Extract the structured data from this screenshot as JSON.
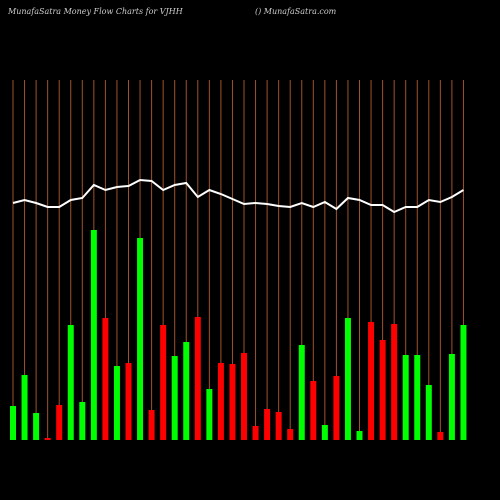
{
  "chart_data": {
    "type": "bar-line",
    "title": "MunafaSatra  Money Flow  Charts for VJHH",
    "subtitle": "() MunafaSatra.com",
    "categories": [
      null,
      null,
      null,
      null,
      null,
      null,
      null,
      null,
      null,
      null,
      null,
      null,
      null,
      null,
      null,
      null,
      null,
      null,
      null,
      null,
      null,
      null,
      null,
      null,
      null,
      null,
      null,
      null,
      null,
      null,
      null,
      null,
      null,
      null,
      null,
      null,
      null,
      null,
      null,
      null
    ],
    "ylim": [
      0,
      360
    ],
    "grid": true,
    "grid_color": "#a0522d",
    "series": [
      {
        "type": "bar",
        "values": [
          34,
          65,
          27,
          2,
          35,
          115,
          38,
          210,
          122,
          74,
          77,
          202,
          30,
          115,
          84,
          98,
          123,
          51,
          77,
          76,
          87,
          14,
          31,
          28,
          11,
          95,
          59,
          15,
          64,
          122,
          9,
          118,
          100,
          116,
          85,
          85,
          55,
          8,
          86,
          115
        ],
        "colors": [
          "#00ff00",
          "#00ff00",
          "#00ff00",
          "#ff0000",
          "#ff0000",
          "#00ff00",
          "#00ff00",
          "#00ff00",
          "#ff0000",
          "#00ff00",
          "#ff0000",
          "#00ff00",
          "#ff0000",
          "#ff0000",
          "#00ff00",
          "#00ff00",
          "#ff0000",
          "#00ff00",
          "#ff0000",
          "#ff0000",
          "#ff0000",
          "#ff0000",
          "#ff0000",
          "#ff0000",
          "#ff0000",
          "#00ff00",
          "#ff0000",
          "#00ff00",
          "#ff0000",
          "#00ff00",
          "#00ff00",
          "#ff0000",
          "#ff0000",
          "#ff0000",
          "#00ff00",
          "#00ff00",
          "#00ff00",
          "#ff0000",
          "#00ff00",
          "#00ff00"
        ]
      },
      {
        "type": "line",
        "color": "#ffffff",
        "values": [
          237,
          240,
          237,
          233,
          233,
          240,
          242,
          255,
          250,
          253,
          254,
          260,
          259,
          250,
          255,
          257,
          243,
          250,
          246,
          241,
          236,
          237,
          236,
          234,
          233,
          237,
          233,
          238,
          231,
          242,
          240,
          235,
          235,
          228,
          233,
          233,
          240,
          238,
          243,
          250
        ]
      }
    ]
  }
}
